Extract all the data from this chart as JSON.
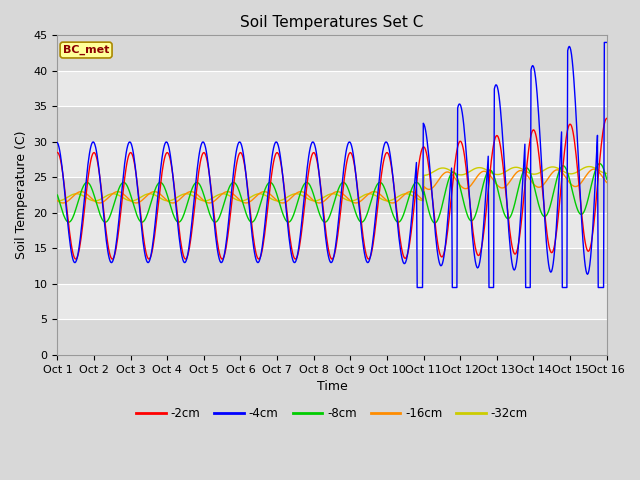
{
  "title": "Soil Temperatures Set C",
  "xlabel": "Time",
  "ylabel": "Soil Temperature (C)",
  "ylim": [
    0,
    45
  ],
  "yticks": [
    0,
    5,
    10,
    15,
    20,
    25,
    30,
    35,
    40,
    45
  ],
  "x_labels": [
    "Oct 1",
    "Oct 2",
    "Oct 3",
    "Oct 4",
    "Oct 5",
    "Oct 6",
    "Oct 7",
    "Oct 8",
    "Oct 9",
    "Oct 10",
    "Oct 11",
    "Oct 12",
    "Oct 13",
    "Oct 14",
    "Oct 15",
    "Oct 16"
  ],
  "series_colors": [
    "#ff0000",
    "#0000ff",
    "#00cc00",
    "#ff8c00",
    "#cccc00"
  ],
  "series_labels": [
    "-2cm",
    "-4cm",
    "-8cm",
    "-16cm",
    "-32cm"
  ],
  "annotation_text": "BC_met",
  "annotation_bg": "#ffff99",
  "annotation_border": "#aa8800",
  "fig_bg": "#d8d8d8",
  "plot_bg": "#e8e8e8",
  "grid_color": "#ffffff",
  "stripe_colors": [
    "#d8d8d8",
    "#e8e8e8"
  ],
  "n_days": 15,
  "pts_per_day": 48,
  "title_fontsize": 11,
  "label_fontsize": 9,
  "tick_fontsize": 8
}
